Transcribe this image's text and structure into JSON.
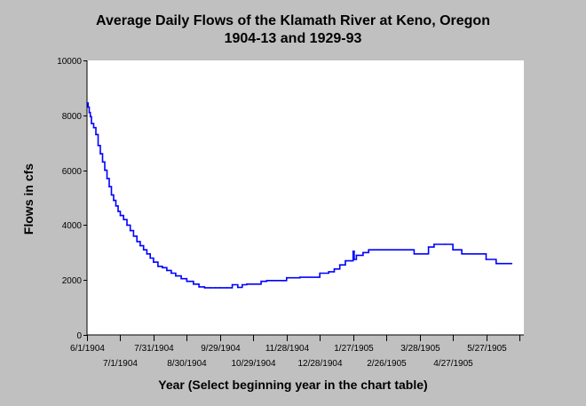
{
  "chart_data": {
    "type": "line",
    "title": "Average Daily Flows of the Klamath River at Keno, Oregon",
    "subtitle": "1904-13 and 1929-93",
    "xlabel": "Year (Select beginning year in the chart table)",
    "ylabel": "Flows in cfs",
    "ylim": [
      0,
      10000
    ],
    "yticks": [
      0,
      2000,
      4000,
      6000,
      8000,
      10000
    ],
    "xlim": [
      "1904-06-01",
      "1905-06-30"
    ],
    "xtick_labels": [
      "6/1/1904",
      "7/1/1904",
      "7/31/1904",
      "8/30/1904",
      "9/29/1904",
      "10/29/1904",
      "11/28/1904",
      "12/28/1904",
      "1/27/1905",
      "2/26/1905",
      "3/28/1905",
      "4/27/1905",
      "5/27/1905"
    ],
    "grid": false,
    "legend": "none",
    "series_color": "#0000ff",
    "series": [
      {
        "x": [
          "1904-06-01",
          "1904-06-02",
          "1904-06-03",
          "1904-06-04",
          "1904-06-05",
          "1904-06-07",
          "1904-06-09",
          "1904-06-11",
          "1904-06-13",
          "1904-06-15",
          "1904-06-17",
          "1904-06-19",
          "1904-06-21",
          "1904-06-23",
          "1904-06-25",
          "1904-06-27",
          "1904-06-29",
          "1904-07-01",
          "1904-07-04",
          "1904-07-07",
          "1904-07-10",
          "1904-07-13",
          "1904-07-16",
          "1904-07-19",
          "1904-07-22",
          "1904-07-25",
          "1904-07-28",
          "1904-07-31",
          "1904-08-04",
          "1904-08-08",
          "1904-08-12",
          "1904-08-16",
          "1904-08-20",
          "1904-08-25",
          "1904-08-30",
          "1904-09-05",
          "1904-09-10",
          "1904-09-15",
          "1904-09-20",
          "1904-09-25",
          "1904-09-29",
          "1904-10-05",
          "1904-10-10",
          "1904-10-15",
          "1904-10-17",
          "1904-10-19",
          "1904-10-23",
          "1904-10-29",
          "1904-11-05",
          "1904-11-10",
          "1904-11-20",
          "1904-11-28",
          "1904-12-10",
          "1904-12-28",
          "1905-01-05",
          "1905-01-10",
          "1905-01-15",
          "1905-01-20",
          "1905-01-25",
          "1905-01-27",
          "1905-01-28",
          "1905-01-30",
          "1905-02-05",
          "1905-02-10",
          "1905-02-20",
          "1905-02-26",
          "1905-03-10",
          "1905-03-20",
          "1905-03-23",
          "1905-03-28",
          "1905-04-05",
          "1905-04-10",
          "1905-04-20",
          "1905-04-27",
          "1905-05-05",
          "1905-05-15",
          "1905-05-20",
          "1905-05-27",
          "1905-06-05",
          "1905-06-19"
        ],
        "y": [
          8450,
          8300,
          8100,
          7950,
          7700,
          7550,
          7300,
          6900,
          6600,
          6300,
          6000,
          5700,
          5400,
          5100,
          4900,
          4700,
          4500,
          4350,
          4200,
          4000,
          3800,
          3600,
          3400,
          3250,
          3100,
          2950,
          2800,
          2650,
          2500,
          2450,
          2350,
          2250,
          2150,
          2050,
          1950,
          1850,
          1750,
          1720,
          1720,
          1720,
          1720,
          1720,
          1830,
          1730,
          1730,
          1830,
          1850,
          1850,
          1950,
          1980,
          1980,
          2080,
          2100,
          2250,
          2300,
          2400,
          2550,
          2700,
          2700,
          3050,
          2750,
          2900,
          3000,
          3100,
          3100,
          3100,
          3100,
          3100,
          2950,
          2950,
          3200,
          3300,
          3300,
          3100,
          2950,
          2950,
          2950,
          2750,
          2600,
          2600
        ]
      }
    ]
  }
}
